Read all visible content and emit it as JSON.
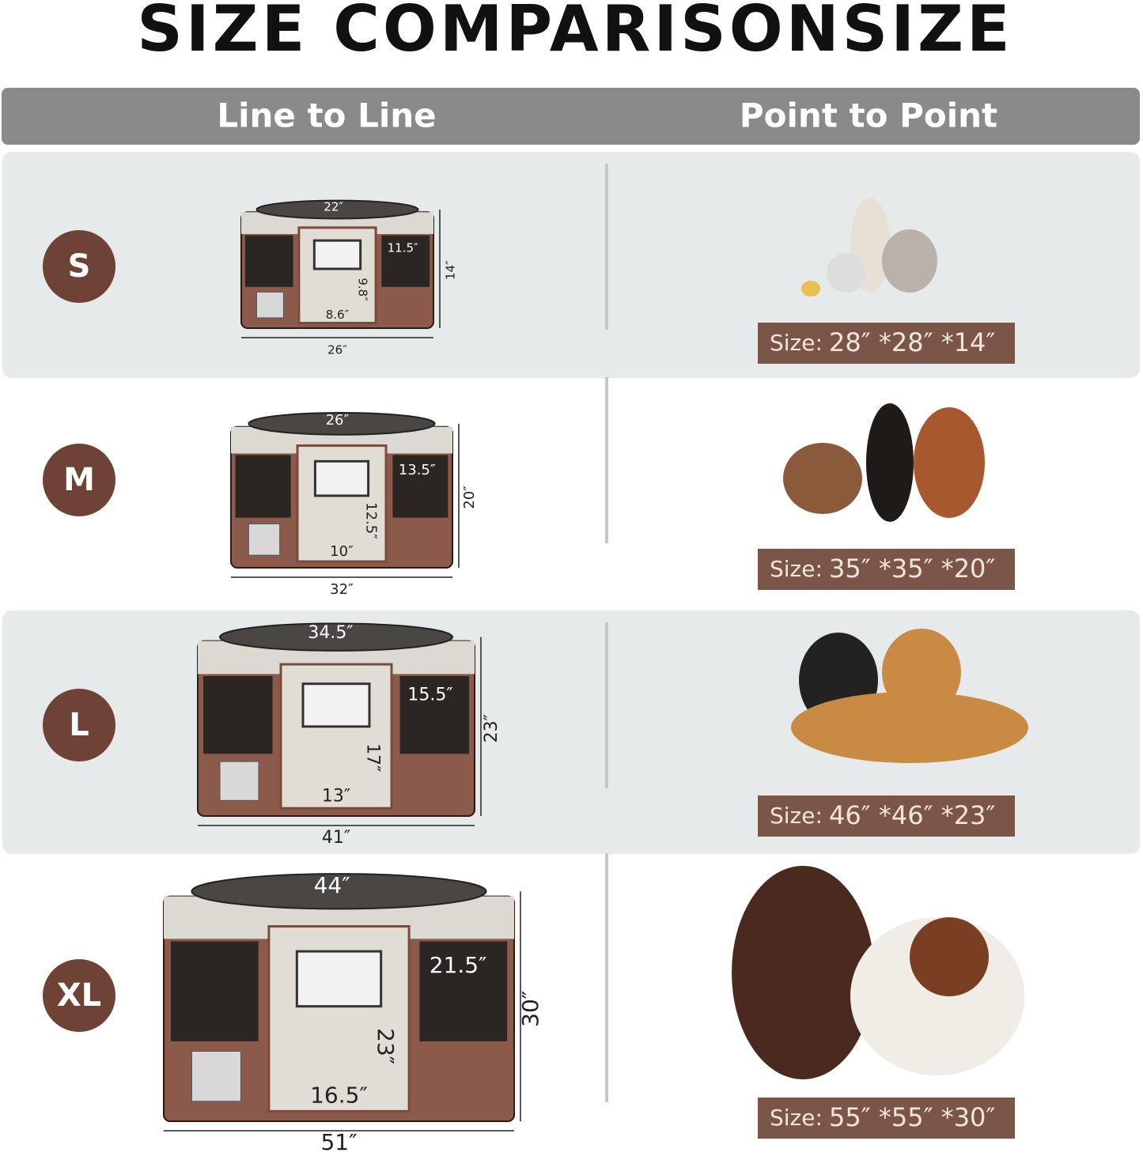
{
  "header": {
    "title": "SIZE COMPARISONSIZE",
    "columns": [
      "Line to Line",
      "Point to Point"
    ]
  },
  "rows": [
    {
      "label": "S",
      "dims": {
        "top": "22″",
        "side": "11.5″",
        "door_height": "9.8″",
        "door_width": "8.6″",
        "height": "14″",
        "width": "26″"
      },
      "size_label": "Size:",
      "size": "28″ *28″ *14″"
    },
    {
      "label": "M",
      "dims": {
        "top": "26″",
        "side": "13.5″",
        "door_height": "12.5″",
        "door_width": "10″",
        "height": "20″",
        "width": "32″"
      },
      "size_label": "Size:",
      "size": "35″ *35″ *20″"
    },
    {
      "label": "L",
      "dims": {
        "top": "34.5″",
        "side": "15.5″",
        "door_height": "17″",
        "door_width": "13″",
        "height": "23″",
        "width": "41″"
      },
      "size_label": "Size:",
      "size": "46″ *46″ *23″"
    },
    {
      "label": "XL",
      "dims": {
        "top": "44″",
        "side": "21.5″",
        "door_height": "23″",
        "door_width": "16.5″",
        "height": "30″",
        "width": "51″"
      },
      "size_label": "Size:",
      "size": "55″ *55″ *30″"
    }
  ]
}
